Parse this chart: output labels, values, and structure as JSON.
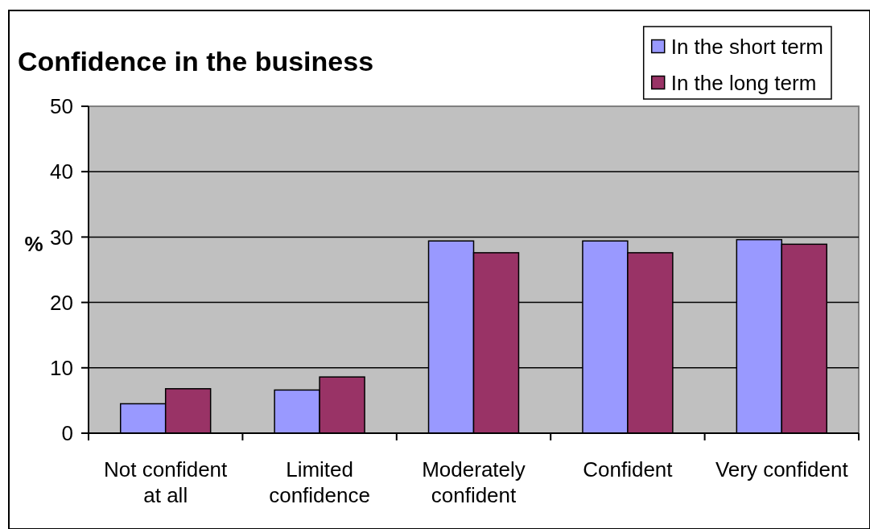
{
  "chart_data": {
    "type": "bar",
    "title": "Confidence in the business",
    "ylabel": "%",
    "categories": [
      "Not confident at all",
      "Limited confidence",
      "Moderately confident",
      "Confident",
      "Very confident"
    ],
    "series": [
      {
        "name": "In the short term",
        "color": "#9999ff",
        "values": [
          4.5,
          6.6,
          29.4,
          29.4,
          29.6
        ]
      },
      {
        "name": "In the long term",
        "color": "#993366",
        "values": [
          6.8,
          8.6,
          27.6,
          27.6,
          28.9
        ]
      }
    ],
    "ylim": [
      0,
      50
    ],
    "yticks": [
      0,
      10,
      20,
      30,
      40,
      50
    ],
    "grid": "y",
    "legend": "top right"
  }
}
